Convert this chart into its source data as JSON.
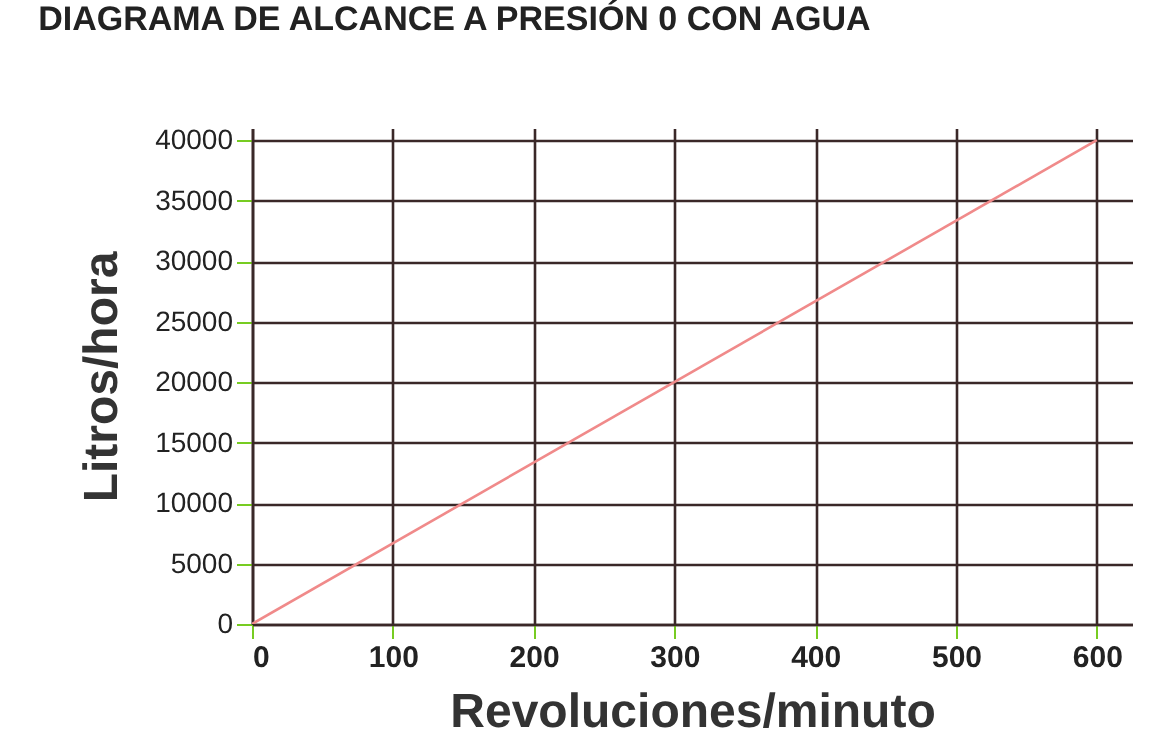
{
  "chart_data": {
    "type": "line",
    "title": "DIAGRAMA DE ALCANCE A PRESIÓN 0 CON AGUA",
    "xlabel": "Revoluciones/minuto",
    "ylabel": "Litros/hora",
    "x": [
      0,
      600
    ],
    "series": [
      {
        "color": "#f08a8a",
        "values": [
          0,
          40000
        ]
      }
    ],
    "xlim": [
      0,
      625
    ],
    "ylim": [
      0,
      41000
    ],
    "xticks": [
      0,
      100,
      200,
      300,
      400,
      500,
      600
    ],
    "yticks": [
      0,
      5000,
      10000,
      15000,
      20000,
      25000,
      30000,
      35000,
      40000
    ],
    "grid": true,
    "marker": "none",
    "line_style": "solid",
    "legend": false
  }
}
